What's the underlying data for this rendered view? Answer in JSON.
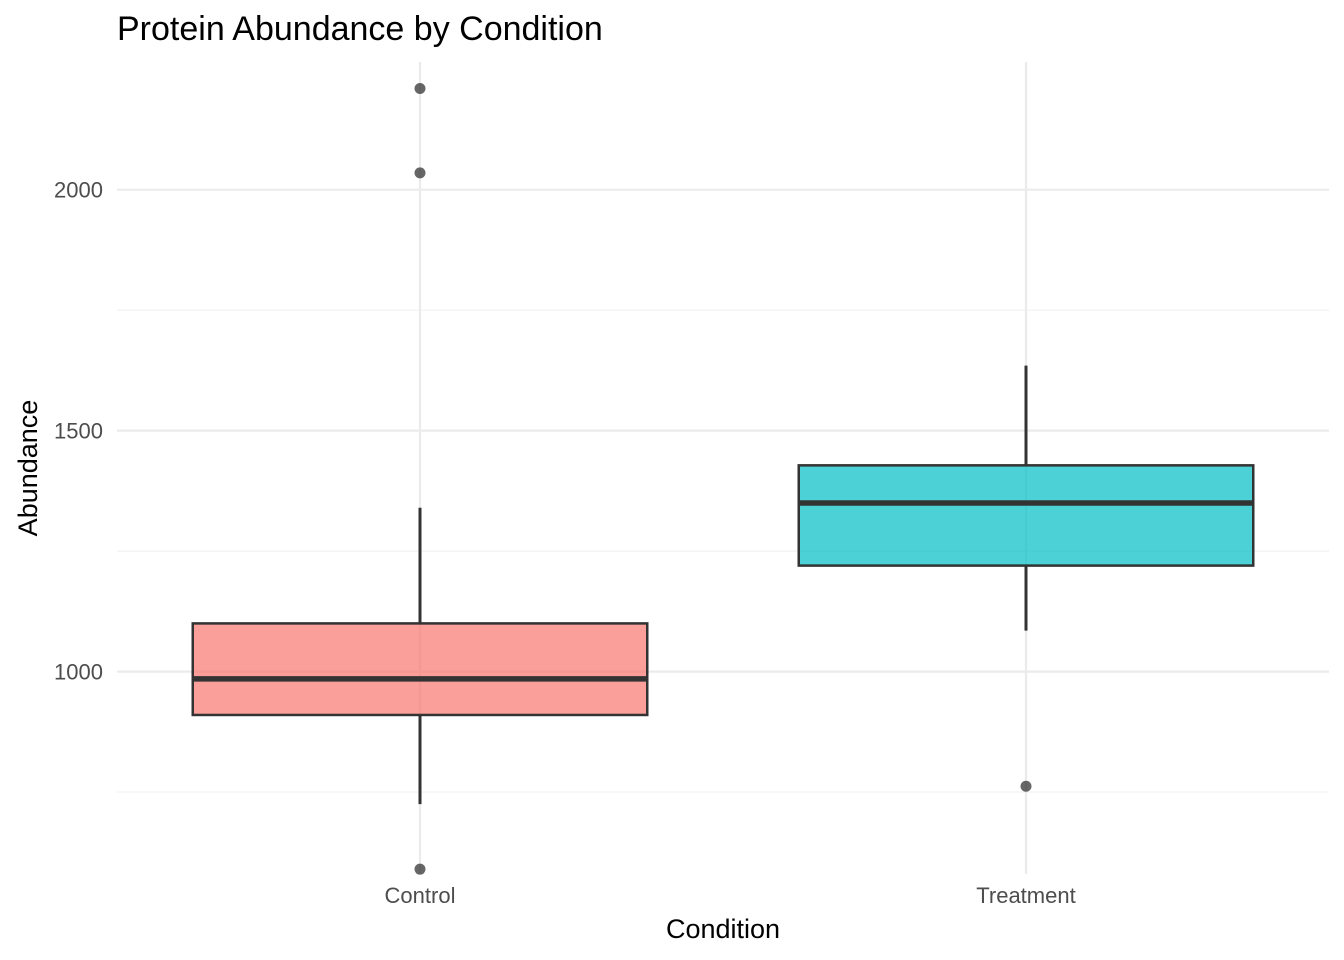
{
  "chart_data": {
    "type": "boxplot",
    "title": "Protein Abundance by Condition",
    "xlabel": "Condition",
    "ylabel": "Abundance",
    "ylim": [
      580,
      2265
    ],
    "y_ticks": [
      1000,
      1500,
      2000
    ],
    "y_minor_ticks": [
      750,
      1250,
      1750
    ],
    "grid": true,
    "legend": "none",
    "categories": [
      "Control",
      "Treatment"
    ],
    "series": [
      {
        "category": "Control",
        "color": "#F8766D",
        "whisker_low": 725,
        "q1": 910,
        "median": 985,
        "q3": 1100,
        "whisker_high": 1340,
        "outliers": [
          590,
          2035,
          2210
        ]
      },
      {
        "category": "Treatment",
        "color": "#00BFC4",
        "whisker_low": 1085,
        "q1": 1220,
        "median": 1350,
        "q3": 1428,
        "whisker_high": 1635,
        "outliers": [
          762
        ]
      }
    ]
  }
}
